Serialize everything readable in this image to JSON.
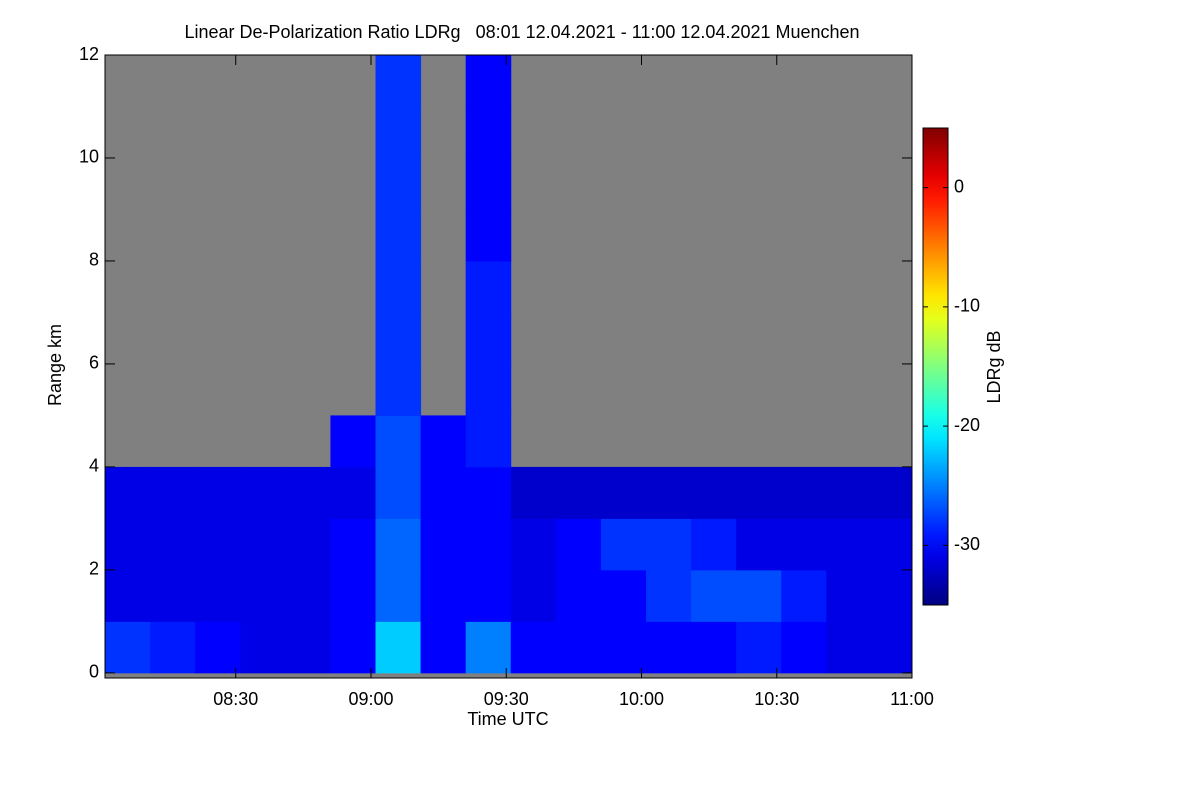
{
  "chart_data": {
    "type": "heatmap",
    "title": "Linear De-Polarization Ratio LDRg   08:01 12.04.2021 - 11:00 12.04.2021 Muenchen",
    "x_label": "Time UTC",
    "y_label": "Range km",
    "colorbar_label": "LDRg dB",
    "colormap": "jet",
    "x": [
      486,
      496,
      506,
      516,
      526,
      536,
      546,
      556,
      566,
      576,
      586,
      596,
      606,
      616,
      626,
      636,
      646,
      656
    ],
    "y": [
      0.5,
      1.5,
      2.5,
      3.5,
      4.5,
      5.5,
      6.5,
      7.5,
      8.5,
      9.5,
      10.5,
      11.5
    ],
    "z": [
      [
        -28,
        -29,
        -30,
        -31,
        -31,
        -30,
        -22,
        -30,
        -25,
        -30,
        -30,
        -30,
        -30,
        -30,
        -29,
        -30,
        -31,
        -31
      ],
      [
        -31,
        -31,
        -31,
        -31,
        -31,
        -30,
        -26,
        -30,
        -30,
        -31,
        -30,
        -30,
        -28,
        -27,
        -27,
        -29,
        -31,
        -31
      ],
      [
        -31,
        -31,
        -31,
        -31,
        -31,
        -30,
        -26,
        -30,
        -30,
        -31,
        -30,
        -28,
        -28,
        -29,
        -31,
        -31,
        -31,
        -31
      ],
      [
        -31,
        -31,
        -31,
        -31,
        -31,
        -31,
        -27,
        -30,
        -30,
        -32,
        -32,
        -32,
        -32,
        -32,
        -32,
        -32,
        -32,
        -32
      ],
      [
        null,
        null,
        null,
        null,
        null,
        -30,
        -27,
        -30,
        -29,
        null,
        null,
        null,
        null,
        null,
        null,
        null,
        null,
        null
      ],
      [
        null,
        null,
        null,
        null,
        null,
        null,
        -28,
        null,
        -29,
        null,
        null,
        null,
        null,
        null,
        null,
        null,
        null,
        null
      ],
      [
        null,
        null,
        null,
        null,
        null,
        null,
        -28,
        null,
        -29,
        null,
        null,
        null,
        null,
        null,
        null,
        null,
        null,
        null
      ],
      [
        null,
        null,
        null,
        null,
        null,
        null,
        -28,
        null,
        -29,
        null,
        null,
        null,
        null,
        null,
        null,
        null,
        null,
        null
      ],
      [
        null,
        null,
        null,
        null,
        null,
        null,
        -28,
        null,
        -30,
        null,
        null,
        null,
        null,
        null,
        null,
        null,
        null,
        null
      ],
      [
        null,
        null,
        null,
        null,
        null,
        null,
        -28,
        null,
        -30,
        null,
        null,
        null,
        null,
        null,
        null,
        null,
        null,
        null
      ],
      [
        null,
        null,
        null,
        null,
        null,
        null,
        -28,
        null,
        -30,
        null,
        null,
        null,
        null,
        null,
        null,
        null,
        null,
        null
      ],
      [
        null,
        null,
        null,
        null,
        null,
        null,
        -28,
        null,
        -30,
        null,
        null,
        null,
        null,
        null,
        null,
        null,
        null,
        null
      ]
    ],
    "xlim": [
      481,
      660
    ],
    "xticks": [
      {
        "value": 510,
        "label": "08:30"
      },
      {
        "value": 540,
        "label": "09:00"
      },
      {
        "value": 570,
        "label": "09:30"
      },
      {
        "value": 600,
        "label": "10:00"
      },
      {
        "value": 630,
        "label": "10:30"
      },
      {
        "value": 660,
        "label": "11:00"
      }
    ],
    "ylim": [
      -0.1,
      12
    ],
    "yticks": [
      0,
      2,
      4,
      6,
      8,
      10,
      12
    ],
    "clim": [
      -35,
      5
    ],
    "cticks": [
      0,
      -10,
      -20,
      -30
    ],
    "nodata_color": "#808080"
  }
}
